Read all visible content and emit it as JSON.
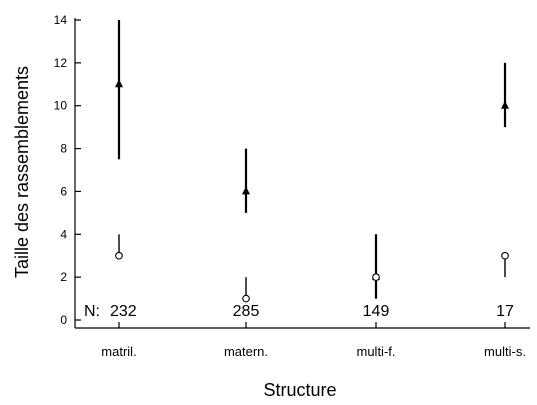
{
  "chart_data": {
    "type": "scatter",
    "xlabel": "Structure",
    "ylabel": "Taille des rassemblements",
    "categories": [
      "matril.",
      "matern.",
      "multi-f.",
      "multi-s."
    ],
    "ylim": [
      0,
      14
    ],
    "yticks": [
      "0",
      "2",
      "4",
      "6",
      "8",
      "10",
      "12",
      "14"
    ],
    "n_prefix": "N:",
    "n_values": [
      "232",
      "285",
      "149",
      "17"
    ],
    "series": [
      {
        "marker": "triangle",
        "values": [
          11,
          6,
          2,
          10
        ],
        "err_low": [
          7.5,
          5,
          1,
          9
        ],
        "err_high": [
          14,
          8,
          4,
          12
        ]
      },
      {
        "marker": "open-circle",
        "values": [
          3,
          1,
          2,
          3
        ],
        "err_low": [
          3,
          1,
          2,
          2
        ],
        "err_high": [
          4,
          2,
          2,
          3
        ]
      }
    ],
    "grid": false
  }
}
